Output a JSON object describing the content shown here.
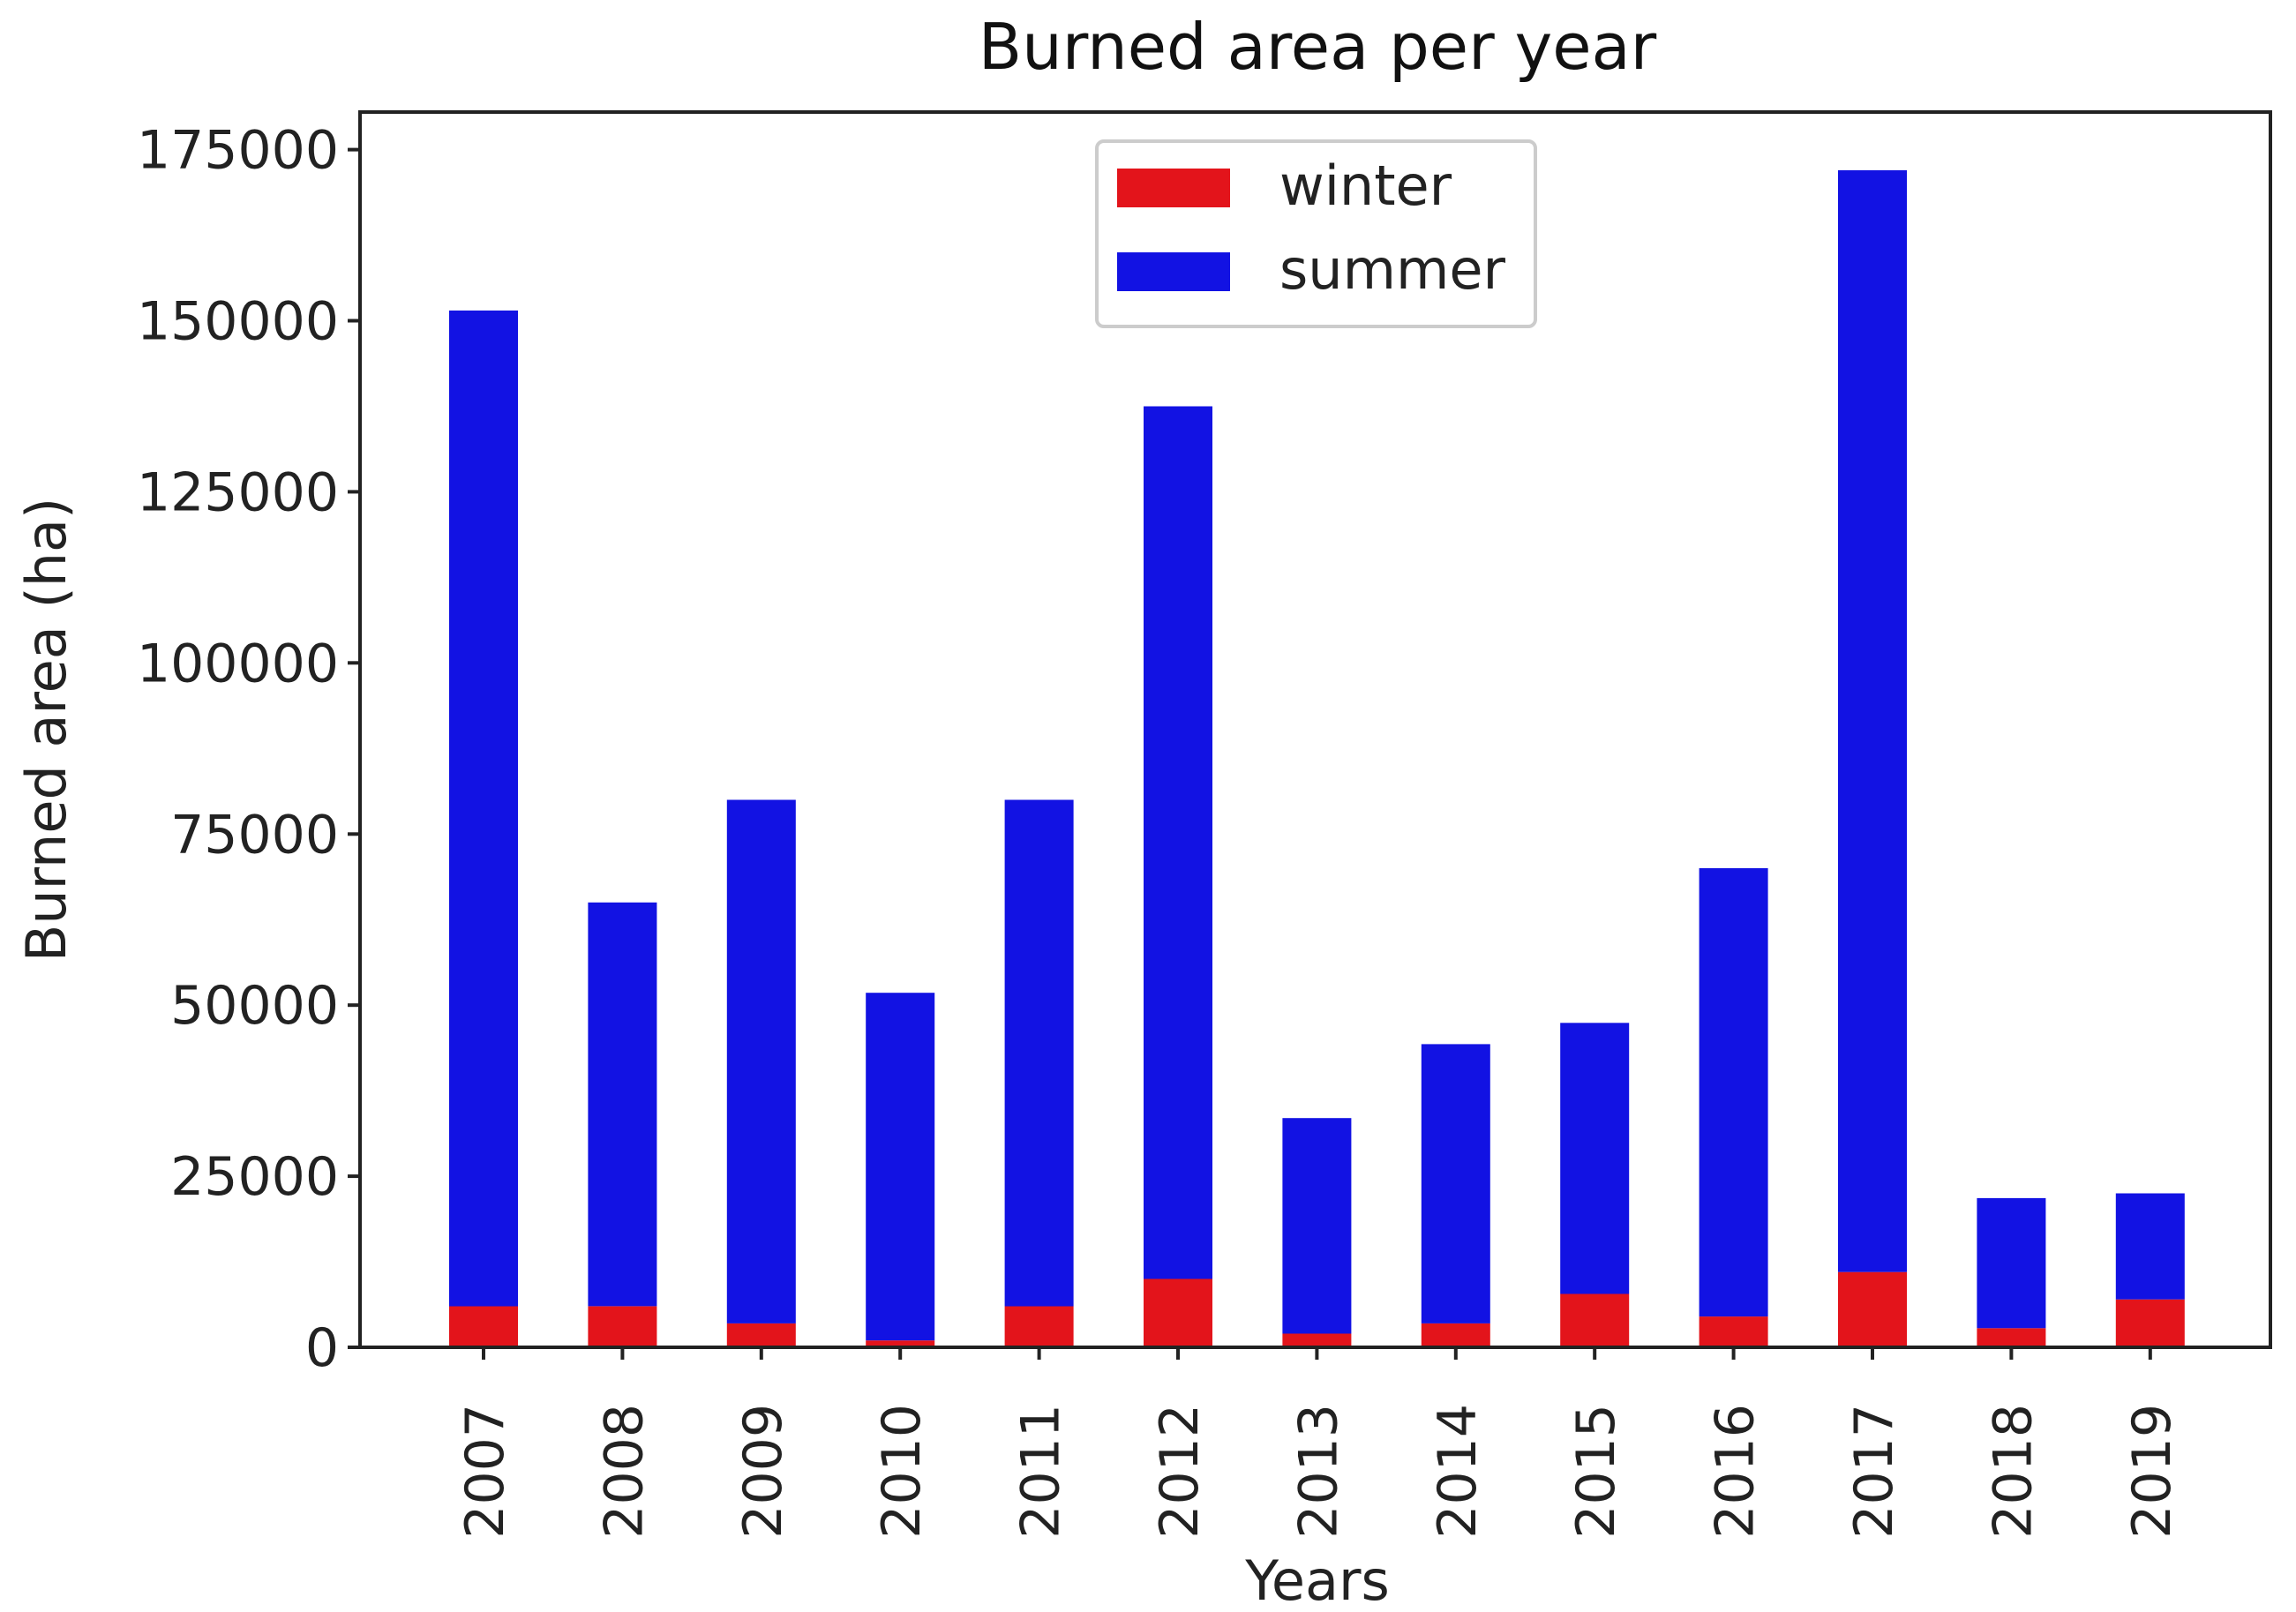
{
  "chart_data": {
    "type": "bar",
    "stacked": true,
    "title": "Burned area per year",
    "xlabel": "Years",
    "ylabel": "Burned area (ha)",
    "ylim": [
      0,
      180000
    ],
    "yticks": [
      0,
      25000,
      50000,
      75000,
      100000,
      125000,
      150000,
      175000
    ],
    "grid": false,
    "legend_position": "top-center",
    "categories": [
      "2007",
      "2008",
      "2009",
      "2010",
      "2011",
      "2012",
      "2013",
      "2014",
      "2015",
      "2016",
      "2017",
      "2018",
      "2019"
    ],
    "series": [
      {
        "name": "winter",
        "color": "#e3141b",
        "values": [
          6000,
          6000,
          3500,
          1000,
          6000,
          10000,
          2000,
          3500,
          7800,
          4500,
          11000,
          2800,
          7000
        ]
      },
      {
        "name": "summer",
        "color": "#1212e3",
        "values": [
          145500,
          59000,
          76500,
          50800,
          74000,
          127500,
          31500,
          40800,
          39600,
          65500,
          161000,
          19000,
          15500
        ]
      }
    ]
  }
}
